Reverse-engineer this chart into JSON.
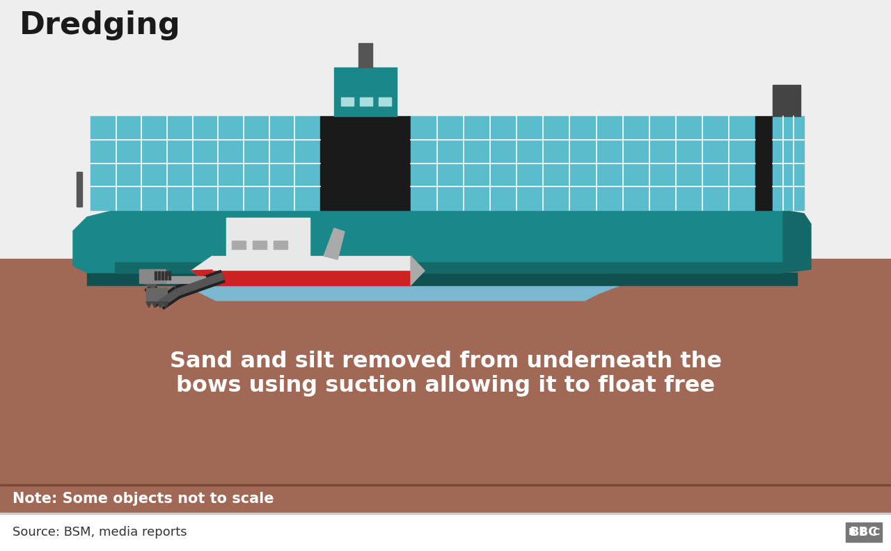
{
  "title": "Dredging",
  "title_color": "#1a1a1a",
  "title_fontsize": 32,
  "bg_color": "#eeeeee",
  "ground_color": "#a06855",
  "ground_shadow": "#8a5a48",
  "water_color": "#7ab8d0",
  "water_deep": "#6aaac0",
  "ship_teal": "#1a8888",
  "ship_teal_dark": "#156868",
  "ship_teal_darker": "#0f5050",
  "container_blue": "#5abccc",
  "container_line": "#ffffff",
  "bridge_dark": "#2a2a2a",
  "dredger_white": "#e8e8e8",
  "dredger_gray": "#aaaaaa",
  "dredger_dark_gray": "#777777",
  "dredger_red": "#cc2222",
  "pipe_black": "#222222",
  "pipe_gray": "#555555",
  "pipe_light": "#999999",
  "suction_color": "#888888",
  "ground_slope_color": "#b07868",
  "annotation_text": "Sand and silt removed from underneath the\nbows using suction allowing it to float free",
  "annotation_color": "#ffffff",
  "annotation_fontsize": 23,
  "note_text": "Note: Some objects not to scale",
  "note_color": "#ffffff",
  "note_fontsize": 15,
  "source_text": "Source: BSM, media reports",
  "source_color": "#333333",
  "source_fontsize": 13,
  "bbc_bg": "#777777",
  "footer_bg": "#ffffff",
  "footer_sep": "#cccccc"
}
